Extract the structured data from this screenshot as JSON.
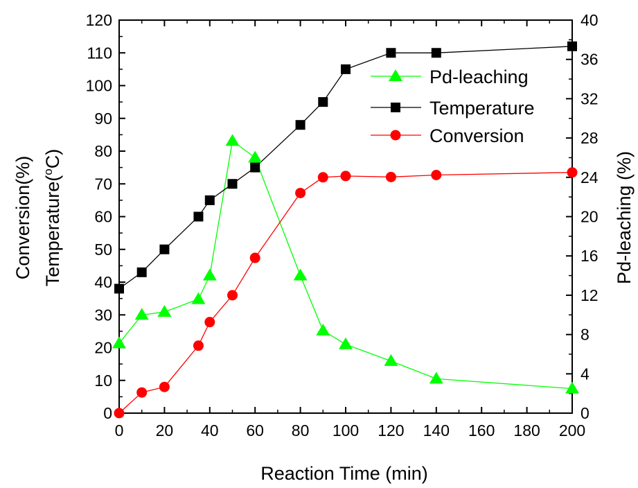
{
  "chart_data": {
    "type": "line",
    "xlabel": "Reaction Time (min)",
    "ylabel_left": "Temperature(",
    "ylabel_left_unit_sup": "o",
    "ylabel_left_unit": "C)",
    "ylabel_left_outer": "Conversion(%)",
    "ylabel_right": "Pd-leaching (%)",
    "xlim": [
      0,
      200
    ],
    "ylim_left": [
      0,
      120
    ],
    "ylim_right": [
      0,
      40
    ],
    "x_ticks": [
      0,
      20,
      40,
      60,
      80,
      100,
      120,
      140,
      160,
      180,
      200
    ],
    "y_left_ticks": [
      0,
      10,
      20,
      30,
      40,
      50,
      60,
      70,
      80,
      90,
      100,
      110,
      120
    ],
    "y_right_ticks": [
      0,
      4,
      8,
      12,
      16,
      20,
      24,
      28,
      32,
      36,
      40
    ],
    "grid": false,
    "legend_position": "top-right",
    "series": [
      {
        "name": "Pd-leaching",
        "axis": "right",
        "marker": "triangle",
        "color": "#00ff00",
        "x": [
          0,
          10,
          20,
          35,
          40,
          50,
          60,
          80,
          90,
          100,
          120,
          140,
          200
        ],
        "y": [
          7.1,
          10.0,
          10.3,
          11.6,
          14.0,
          27.7,
          26.0,
          14.0,
          8.4,
          7.0,
          5.3,
          3.5,
          2.5
        ]
      },
      {
        "name": "Temperature",
        "axis": "left",
        "marker": "square",
        "color": "#000000",
        "x": [
          0,
          10,
          20,
          35,
          40,
          50,
          60,
          80,
          90,
          100,
          120,
          140,
          200
        ],
        "y": [
          38,
          43,
          50,
          60,
          65,
          70,
          75,
          88,
          95,
          105,
          110,
          110,
          112
        ]
      },
      {
        "name": "Conversion",
        "axis": "left",
        "marker": "circle",
        "color": "#ff0000",
        "x": [
          0,
          10,
          20,
          35,
          40,
          50,
          60,
          80,
          90,
          100,
          120,
          140,
          200
        ],
        "y": [
          0,
          6.3,
          8,
          20.6,
          27.8,
          36,
          47.4,
          67.2,
          72,
          72.4,
          72.1,
          72.7,
          73.5
        ]
      }
    ]
  }
}
